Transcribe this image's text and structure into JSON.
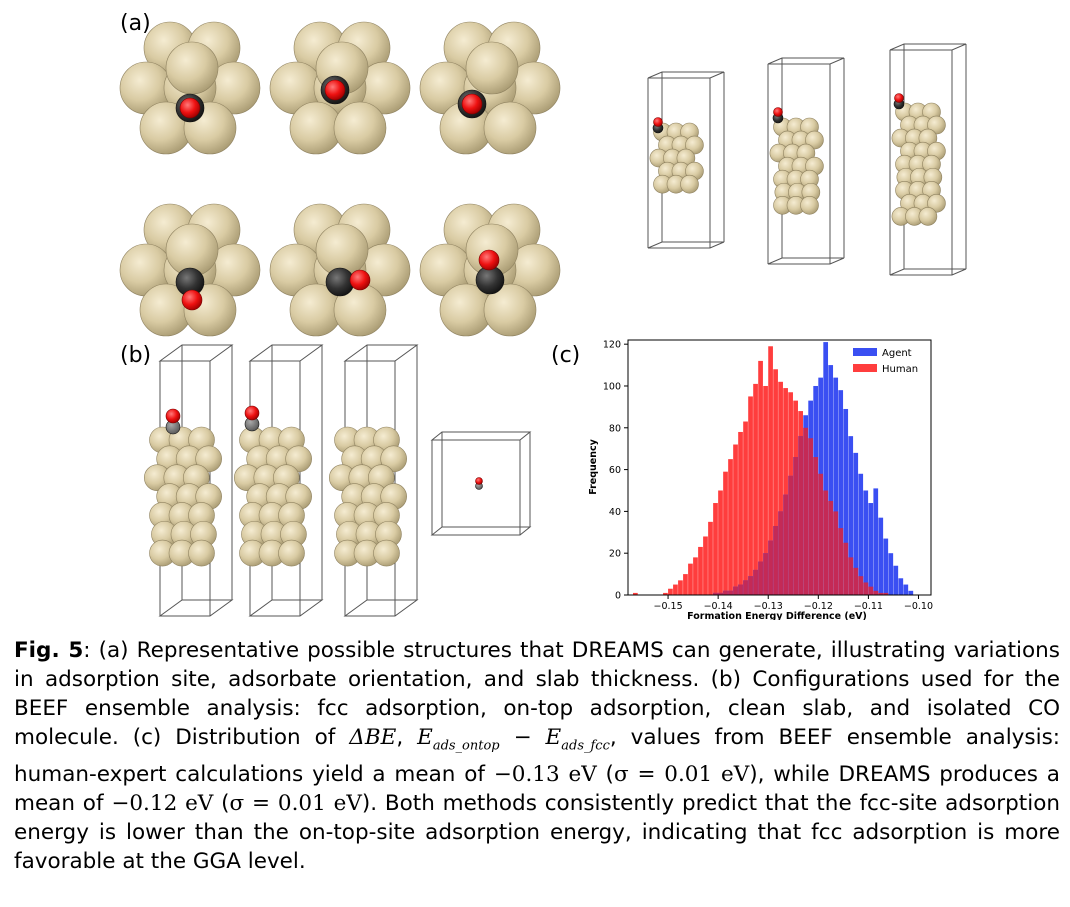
{
  "panels": {
    "a": "(a)",
    "b": "(b)",
    "c": "(c)"
  },
  "colors": {
    "au": "#d8c99e",
    "au_edge": "#9c8e67",
    "oxygen": "#e8101a",
    "carbon": "#333333",
    "agent": "#3a4ff2",
    "human": "#ff3d3d",
    "overlap": "#c42a56"
  },
  "chart_data": {
    "type": "histogram",
    "xlabel": "Formation Energy Difference (eV)",
    "ylabel": "Frequency",
    "xlim": [
      -0.158,
      -0.0975
    ],
    "ylim": [
      0,
      122
    ],
    "xticks": [
      -0.15,
      -0.14,
      -0.13,
      -0.12,
      -0.11,
      -0.1
    ],
    "xtick_labels": [
      "−0.15",
      "−0.14",
      "−0.13",
      "−0.12",
      "−0.11",
      "−0.10"
    ],
    "yticks": [
      0,
      20,
      40,
      60,
      80,
      100,
      120
    ],
    "legend_position": "top-right",
    "bins": {
      "start": -0.157,
      "width": 0.001,
      "count": 56
    },
    "series": [
      {
        "name": "Agent",
        "color": "#3a4ff2",
        "values": [
          0,
          0,
          0,
          0,
          0,
          0,
          0,
          0,
          0,
          0,
          0,
          0,
          0,
          0,
          0,
          0,
          1,
          1,
          2,
          2,
          4,
          5,
          7,
          9,
          12,
          16,
          20,
          26,
          33,
          40,
          48,
          57,
          66,
          76,
          86,
          93,
          100,
          104,
          121,
          110,
          104,
          98,
          89,
          76,
          68,
          58,
          50,
          44,
          51,
          37,
          27,
          20,
          14,
          8,
          5,
          2
        ]
      },
      {
        "name": "Human",
        "color": "#ff3d3d",
        "values": [
          1,
          0,
          0,
          0,
          0,
          0,
          1,
          3,
          5,
          7,
          10,
          15,
          18,
          23,
          28,
          35,
          44,
          50,
          59,
          65,
          72,
          78,
          83,
          95,
          101,
          112,
          100,
          119,
          108,
          102,
          99,
          97,
          93,
          88,
          80,
          75,
          66,
          58,
          50,
          45,
          40,
          32,
          25,
          18,
          13,
          9,
          6,
          4,
          2,
          1,
          1,
          0,
          0,
          0,
          0,
          0
        ]
      }
    ]
  },
  "caption": {
    "fig_label": "Fig. 5",
    "p1": ": (a) Representative possible structures that DREAMS can generate, illustrating variations in adsorption site, adsorbate orientation, and slab thickness. (b) Configurations used for the BEEF ensemble analysis: fcc adsorption, on-top adsorption, clean slab, and isolated CO molecule. (c) Distribution of ",
    "m_dbe": "ΔBE",
    "comma1": ", ",
    "m_e1": "E",
    "m_sub1": "ads_ontop",
    "minus": " − ",
    "m_e2": "E",
    "m_sub2": "ads_fcc",
    "p2": ", values from BEEF ensemble analysis: human-expert calculations yield a mean of ",
    "m_v1": "−0.13 eV",
    "p3": " (",
    "m_s1": "σ = 0.01 eV",
    "p4": "), while DREAMS produces a mean of ",
    "m_v2": "−0.12 eV",
    "p5": " (",
    "m_s2": "σ = 0.01 eV",
    "p6": "). Both methods consistently predict that the fcc-site adsorption energy is lower than the on-top-site adsorption energy, indicating that fcc adsorption is more favorable at the GGA level."
  }
}
